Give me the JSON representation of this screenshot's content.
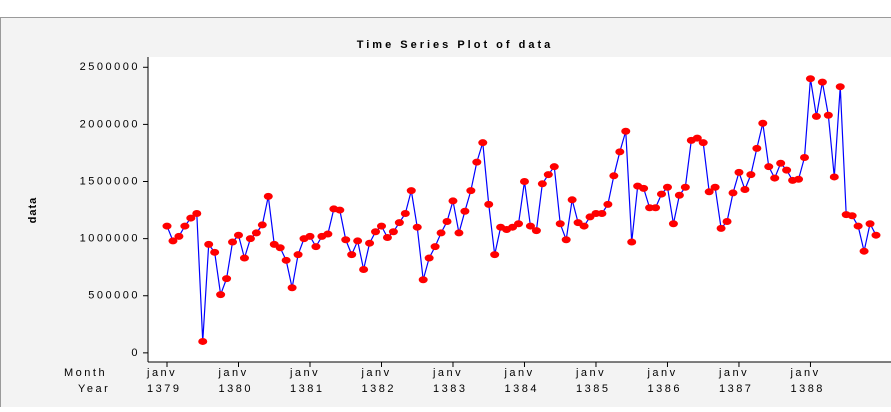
{
  "chart_data": {
    "type": "line",
    "title": "Time Series Plot of data",
    "y_label": "data",
    "x_row_labels": [
      "Month",
      "Year"
    ],
    "categories": [
      "janv",
      null,
      null,
      null,
      null,
      null,
      null,
      null,
      null,
      null,
      null,
      null,
      "janv",
      null,
      null,
      null,
      null,
      null,
      null,
      null,
      null,
      null,
      null,
      null,
      "janv",
      null,
      null,
      null,
      null,
      null,
      null,
      null,
      null,
      null,
      null,
      null,
      "janv",
      null,
      null,
      null,
      null,
      null,
      null,
      null,
      null,
      null,
      null,
      null,
      "janv",
      null,
      null,
      null,
      null,
      null,
      null,
      null,
      null,
      null,
      null,
      null,
      "janv",
      null,
      null,
      null,
      null,
      null,
      null,
      null,
      null,
      null,
      null,
      null,
      "janv",
      null,
      null,
      null,
      null,
      null,
      null,
      null,
      null,
      null,
      null,
      null,
      "janv",
      null,
      null,
      null,
      null,
      null,
      null,
      null,
      null,
      null,
      null,
      null,
      "janv",
      null,
      null,
      null,
      null,
      null,
      null,
      null,
      null,
      null,
      null,
      null,
      "janv",
      null,
      null,
      null,
      null,
      null,
      null,
      null,
      null,
      null,
      null,
      null
    ],
    "year_labels": [
      "1379",
      null,
      null,
      null,
      null,
      null,
      null,
      null,
      null,
      null,
      null,
      null,
      "1380",
      null,
      null,
      null,
      null,
      null,
      null,
      null,
      null,
      null,
      null,
      null,
      "1381",
      null,
      null,
      null,
      null,
      null,
      null,
      null,
      null,
      null,
      null,
      null,
      "1382",
      null,
      null,
      null,
      null,
      null,
      null,
      null,
      null,
      null,
      null,
      null,
      "1383",
      null,
      null,
      null,
      null,
      null,
      null,
      null,
      null,
      null,
      null,
      null,
      "1384",
      null,
      null,
      null,
      null,
      null,
      null,
      null,
      null,
      null,
      null,
      null,
      "1385",
      null,
      null,
      null,
      null,
      null,
      null,
      null,
      null,
      null,
      null,
      null,
      "1386",
      null,
      null,
      null,
      null,
      null,
      null,
      null,
      null,
      null,
      null,
      null,
      "1387",
      null,
      null,
      null,
      null,
      null,
      null,
      null,
      null,
      null,
      null,
      null,
      "1388",
      null,
      null,
      null,
      null,
      null,
      null,
      null,
      null,
      null,
      null,
      null
    ],
    "series": [
      {
        "name": "data",
        "color": "#0000ff",
        "marker_color": "#ff0000",
        "values": [
          1110000,
          980000,
          1020000,
          1110000,
          1180000,
          1220000,
          100000,
          950000,
          880000,
          510000,
          650000,
          970000,
          1030000,
          830000,
          1000000,
          1050000,
          1120000,
          1370000,
          950000,
          920000,
          810000,
          570000,
          860000,
          1000000,
          1020000,
          930000,
          1020000,
          1040000,
          1260000,
          1250000,
          990000,
          860000,
          980000,
          730000,
          960000,
          1060000,
          1110000,
          1010000,
          1060000,
          1140000,
          1220000,
          1420000,
          1100000,
          640000,
          830000,
          930000,
          1050000,
          1150000,
          1330000,
          1050000,
          1240000,
          1420000,
          1670000,
          1840000,
          1300000,
          860000,
          1100000,
          1080000,
          1100000,
          1130000,
          1500000,
          1110000,
          1070000,
          1480000,
          1560000,
          1630000,
          1130000,
          990000,
          1340000,
          1140000,
          1110000,
          1190000,
          1220000,
          1220000,
          1300000,
          1550000,
          1760000,
          1940000,
          970000,
          1460000,
          1440000,
          1270000,
          1270000,
          1390000,
          1450000,
          1130000,
          1380000,
          1450000,
          1860000,
          1880000,
          1840000,
          1410000,
          1450000,
          1090000,
          1150000,
          1400000,
          1580000,
          1430000,
          1560000,
          1790000,
          2010000,
          1630000,
          1530000,
          1660000,
          1600000,
          1510000,
          1520000,
          1710000,
          2400000,
          2070000,
          2370000,
          2080000,
          1540000,
          2330000,
          1210000,
          1200000,
          1110000,
          890000,
          1130000,
          1030000
        ]
      }
    ],
    "ylim": [
      -80000,
      2590000
    ],
    "yticks": [
      0,
      500000,
      1000000,
      1500000,
      2000000,
      2500000
    ],
    "grid": false
  }
}
